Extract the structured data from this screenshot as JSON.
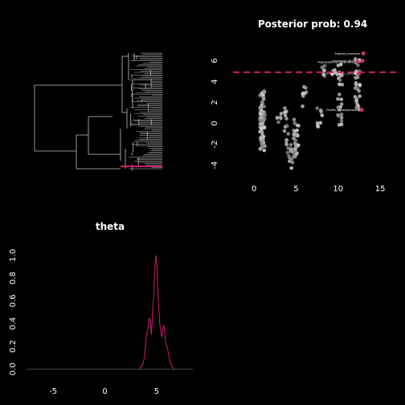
{
  "chart_data": [
    {
      "type": "tree",
      "panel": "phylogeny",
      "highlight_color": "#cc1c6a",
      "branch_color": "#bfbfbf"
    },
    {
      "type": "scatter",
      "panel": "traits",
      "title": "Posterior prob: 0.94",
      "xlim": [
        -2.5,
        17
      ],
      "ylim": [
        -4.8,
        7.2
      ],
      "xticks": [
        0,
        5,
        10,
        15
      ],
      "yticks": [
        -4,
        -2,
        0,
        2,
        4,
        6
      ],
      "threshold": 4.9,
      "threshold_color": "#cc1c6a",
      "point_color": "#9a9a9a",
      "highlight_color": "#cc3366",
      "clusters": [
        {
          "x": 1.0,
          "ymin": -2.6,
          "ymax": 3.2,
          "n": 70
        },
        {
          "x": 3.0,
          "ymin": -0.2,
          "ymax": 2.0,
          "n": 6
        },
        {
          "x": 3.9,
          "ymin": -2.0,
          "ymax": 2.0,
          "n": 12
        },
        {
          "x": 4.3,
          "ymin": -4.3,
          "ymax": -2.0,
          "n": 14
        },
        {
          "x": 5.0,
          "ymin": -3.2,
          "ymax": 0.4,
          "n": 30
        },
        {
          "x": 6.0,
          "ymin": 1.5,
          "ymax": 3.6,
          "n": 8
        },
        {
          "x": 7.8,
          "ymin": -0.5,
          "ymax": 1.5,
          "n": 8
        },
        {
          "x": 8.3,
          "ymin": 4.2,
          "ymax": 5.8,
          "n": 6
        },
        {
          "x": 9.5,
          "ymin": 4.5,
          "ymax": 6.0,
          "n": 6
        },
        {
          "x": 10.2,
          "ymin": -0.3,
          "ymax": 6.0,
          "n": 26
        },
        {
          "x": 12.3,
          "ymin": 1.0,
          "ymax": 6.5,
          "n": 30
        }
      ],
      "highlighted": [
        {
          "label": "Elephas_maximus",
          "x": 13.0,
          "y": 6.7
        },
        {
          "label": "Loxodonta_africana",
          "x": 12.9,
          "y": 6.0
        },
        {
          "label": "Hippopotamus_amphibius",
          "x": 12.3,
          "y": 5.9
        },
        {
          "label": "Ceratotherium_simum",
          "x": 12.5,
          "y": 4.8
        },
        {
          "label": "Giraffa_camelopardalis",
          "x": 12.8,
          "y": 1.3
        }
      ]
    },
    {
      "type": "line",
      "panel": "density",
      "title": "theta",
      "xlim": [
        -7.5,
        8.5
      ],
      "ylim": [
        -0.04,
        1.09
      ],
      "xticks": [
        -5,
        0,
        5
      ],
      "yticks": [
        "0.0",
        "0.2",
        "0.4",
        "0.6",
        "0.8",
        "1.0"
      ],
      "line_color": "#cc1c6a",
      "x": [
        3.3,
        3.5,
        3.7,
        3.8,
        3.9,
        4.0,
        4.1,
        4.2,
        4.3,
        4.4,
        4.5,
        4.6,
        4.7,
        4.8,
        4.9,
        5.0,
        5.1,
        5.2,
        5.3,
        5.4,
        5.5,
        5.6,
        5.7,
        5.8,
        5.9,
        6.0,
        6.1,
        6.2,
        6.3,
        6.5,
        6.7
      ],
      "y": [
        0.0,
        0.02,
        0.05,
        0.1,
        0.18,
        0.28,
        0.33,
        0.38,
        0.45,
        0.42,
        0.3,
        0.5,
        0.62,
        0.85,
        1.0,
        0.95,
        0.75,
        0.55,
        0.4,
        0.33,
        0.28,
        0.36,
        0.38,
        0.3,
        0.22,
        0.2,
        0.16,
        0.1,
        0.06,
        0.02,
        0.0
      ]
    }
  ]
}
